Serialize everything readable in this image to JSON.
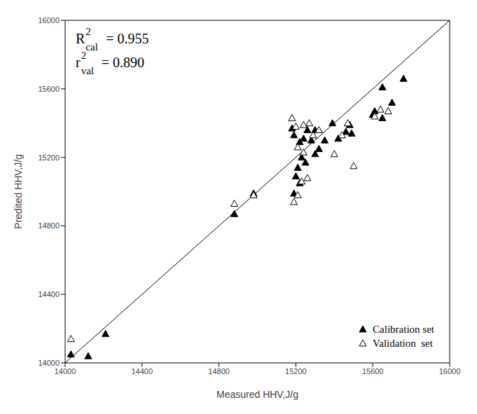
{
  "chart_data": {
    "type": "scatter",
    "x_label": "Measured HHV,J/g",
    "y_label": "Predited HHV,J/g",
    "xlim": [
      14000,
      16000
    ],
    "ylim": [
      14000,
      16000
    ],
    "xticks": [
      14000,
      14400,
      14800,
      15200,
      15600,
      16000
    ],
    "yticks": [
      14000,
      14400,
      14800,
      15200,
      15600,
      16000
    ],
    "grid": false,
    "legend": "bottom-right",
    "annotations": [
      {
        "symbol": "R",
        "superscript": "2",
        "subscript": "cal",
        "text": "= 0.955"
      },
      {
        "symbol": "r",
        "superscript": "2",
        "subscript": "val",
        "text": "= 0.890"
      }
    ],
    "series": [
      {
        "name": "Calibration set",
        "color": "#000000",
        "marker": "filled-triangle",
        "x": [
          14030,
          14120,
          14210,
          14880,
          14980,
          15180,
          15190,
          15220,
          15240,
          15260,
          15280,
          15300,
          15230,
          15250,
          15210,
          15200,
          15220,
          15190,
          15300,
          15320,
          15350,
          15390,
          15420,
          15460,
          15480,
          15490,
          15600,
          15610,
          15650,
          15700,
          15760,
          15650
        ],
        "values": [
          14050,
          14040,
          14170,
          14870,
          14990,
          15370,
          15330,
          15290,
          15310,
          15360,
          15300,
          15360,
          15200,
          15170,
          15140,
          15090,
          15050,
          14990,
          15220,
          15250,
          15300,
          15400,
          15310,
          15350,
          15390,
          15340,
          15450,
          15470,
          15430,
          15520,
          15660,
          15610
        ]
      },
      {
        "name": "Validation  set",
        "color": "#000000",
        "marker": "open-triangle",
        "x": [
          14030,
          14880,
          14980,
          15180,
          15200,
          15240,
          15270,
          15290,
          15320,
          15210,
          15240,
          15230,
          15260,
          15190,
          15210,
          15400,
          15440,
          15470,
          15500,
          15610,
          15640,
          15680
        ],
        "values": [
          14140,
          14930,
          14980,
          15430,
          15380,
          15390,
          15400,
          15330,
          15360,
          15260,
          15230,
          15060,
          15080,
          14940,
          14980,
          15220,
          15330,
          15400,
          15150,
          15440,
          15480,
          15470
        ]
      }
    ]
  }
}
